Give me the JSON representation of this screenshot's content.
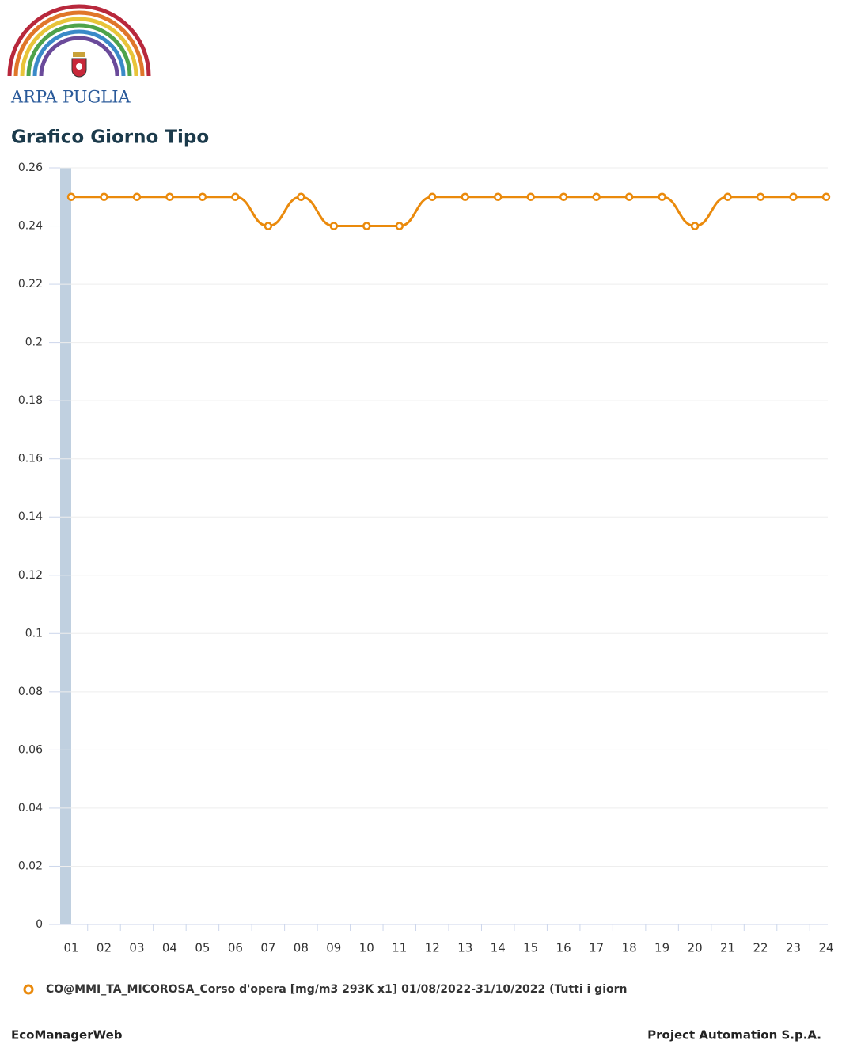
{
  "logo_text": "ARPA PUGLIA",
  "footer": {
    "left": "EcoManagerWeb",
    "right": "Project Automation S.p.A."
  },
  "chart_data": {
    "type": "line",
    "title": "Grafico Giorno Tipo",
    "categories": [
      "01",
      "02",
      "03",
      "04",
      "05",
      "06",
      "07",
      "08",
      "09",
      "10",
      "11",
      "12",
      "13",
      "14",
      "15",
      "16",
      "17",
      "18",
      "19",
      "20",
      "21",
      "22",
      "23",
      "24"
    ],
    "series": [
      {
        "name": "CO@MMI_TA_MICOROSA_Corso d'opera [mg/m3 293K x1] 01/08/2022-31/10/2022 (Tutti i giorn",
        "color": "#ea8a0c",
        "values": [
          0.25,
          0.25,
          0.25,
          0.25,
          0.25,
          0.25,
          0.24,
          0.25,
          0.24,
          0.24,
          0.24,
          0.25,
          0.25,
          0.25,
          0.25,
          0.25,
          0.25,
          0.25,
          0.25,
          0.24,
          0.25,
          0.25,
          0.25,
          0.25
        ]
      }
    ],
    "ylim": [
      0,
      0.26
    ],
    "yticks": [
      0,
      0.02,
      0.04,
      0.06,
      0.08,
      0.1,
      0.12,
      0.14,
      0.16,
      0.18,
      0.2,
      0.22,
      0.24,
      0.26
    ],
    "grid": true
  }
}
